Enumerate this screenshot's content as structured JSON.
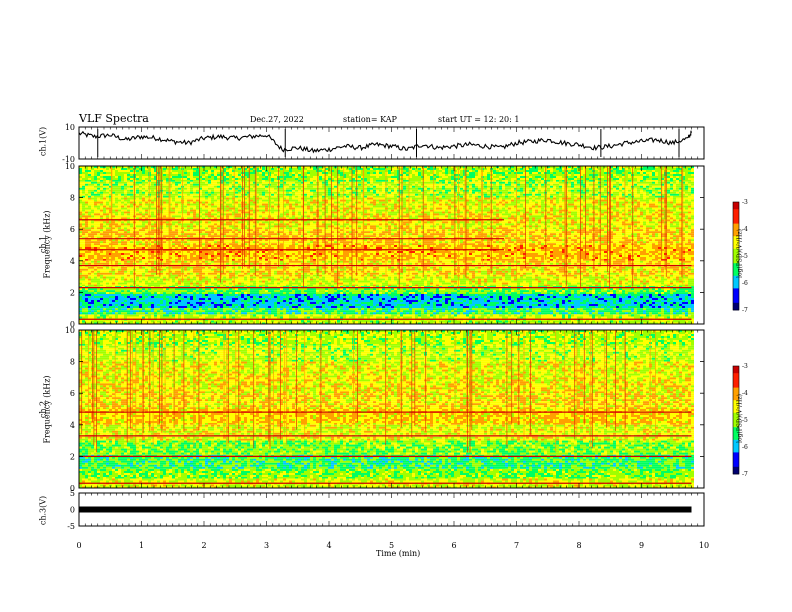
{
  "header": {
    "title": "VLF Spectra",
    "date": "Dec.27, 2022",
    "station": "station= KAP",
    "start": "start  UT  =   12: 20: 1"
  },
  "colorbar": {
    "label": "log(PSD)(V²/Hz)",
    "ticks": [
      "-3",
      "-4",
      "-5",
      "-6",
      "-7"
    ]
  },
  "colors": {
    "colormap": [
      "#000070",
      "#0000ff",
      "#00c8ff",
      "#00ff60",
      "#a0ff00",
      "#ffff00",
      "#ffa000",
      "#ff2000",
      "#c80000",
      "#ffffff"
    ],
    "trace": "#000000"
  },
  "chart_data": [
    {
      "type": "line",
      "name_label": "ch.1(V)",
      "ylabel": "ch.1(V)",
      "ylim": [
        -10,
        10
      ],
      "yticks": [
        "10",
        "-10"
      ],
      "xlim": [
        0,
        10
      ],
      "x": [
        0,
        0.25,
        0.5,
        0.75,
        1.0,
        1.25,
        1.5,
        1.75,
        2.0,
        2.25,
        2.5,
        2.75,
        3.0,
        3.25,
        3.5,
        3.75,
        4.0,
        4.25,
        4.5,
        4.75,
        5.0,
        5.25,
        5.5,
        5.75,
        6.0,
        6.25,
        6.5,
        6.75,
        7.0,
        7.25,
        7.5,
        7.75,
        8.0,
        8.25,
        8.5,
        8.75,
        9.0,
        9.25,
        9.5,
        9.75,
        9.8
      ],
      "values": [
        6,
        4,
        5,
        2,
        4,
        3,
        1,
        0,
        3,
        4,
        3,
        4,
        5,
        -4,
        -3,
        -5,
        -4,
        -2,
        -3,
        -1,
        -2,
        -4,
        -1,
        -3,
        -2,
        -1,
        -2,
        -3,
        0,
        1,
        2,
        0,
        -1,
        -3,
        -2,
        0,
        1,
        2,
        0,
        3,
        7
      ]
    },
    {
      "type": "heatmap",
      "name_label": "ch.1",
      "ylabel": "ch.1\nFrequency (kHz)",
      "ylim": [
        0,
        10
      ],
      "xlim": [
        0,
        10
      ],
      "yticks": [
        "0",
        "2",
        "4",
        "6",
        "8",
        "10"
      ],
      "zlim": [
        -7,
        -3
      ],
      "bands": [
        {
          "f": [
            9.0,
            10.0
          ],
          "level": -5.0
        },
        {
          "f": [
            8.0,
            9.0
          ],
          "level": -4.9
        },
        {
          "f": [
            7.0,
            8.0
          ],
          "level": -4.6
        },
        {
          "f": [
            6.0,
            7.0
          ],
          "level": -4.5
        },
        {
          "f": [
            5.0,
            6.0
          ],
          "level": -4.3
        },
        {
          "f": [
            4.0,
            5.0
          ],
          "level": -4.2
        },
        {
          "f": [
            3.0,
            4.0
          ],
          "level": -4.4
        },
        {
          "f": [
            2.4,
            3.0
          ],
          "level": -4.7
        },
        {
          "f": [
            1.9,
            2.4
          ],
          "level": -5.2
        },
        {
          "f": [
            1.0,
            1.9
          ],
          "level": -5.9
        },
        {
          "f": [
            0.6,
            1.0
          ],
          "level": -5.4
        },
        {
          "f": [
            0.0,
            0.6
          ],
          "level": -4.8
        }
      ],
      "lines": [
        {
          "f": 6.6,
          "t": [
            0,
            6.8
          ]
        },
        {
          "f": 5.4,
          "t": [
            0,
            6.8
          ]
        },
        {
          "f": 4.7,
          "t": [
            0,
            6.8
          ]
        },
        {
          "f": 3.7,
          "t": [
            0,
            9.8
          ]
        },
        {
          "f": 2.3,
          "t": [
            0,
            9.8
          ]
        },
        {
          "f": 0.3,
          "t": [
            0,
            9.8
          ]
        }
      ]
    },
    {
      "type": "heatmap",
      "name_label": "ch.2",
      "ylabel": "ch.2\nFrequency (kHz)",
      "ylim": [
        0,
        10
      ],
      "xlim": [
        0,
        10
      ],
      "yticks": [
        "0",
        "2",
        "4",
        "6",
        "8",
        "10"
      ],
      "zlim": [
        -7,
        -3
      ],
      "bands": [
        {
          "f": [
            9.0,
            10.0
          ],
          "level": -4.9
        },
        {
          "f": [
            8.0,
            9.0
          ],
          "level": -4.8
        },
        {
          "f": [
            7.0,
            8.0
          ],
          "level": -4.6
        },
        {
          "f": [
            6.0,
            7.0
          ],
          "level": -4.5
        },
        {
          "f": [
            5.0,
            6.0
          ],
          "level": -4.4
        },
        {
          "f": [
            4.0,
            5.0
          ],
          "level": -4.3
        },
        {
          "f": [
            3.0,
            4.0
          ],
          "level": -4.6
        },
        {
          "f": [
            2.1,
            3.0
          ],
          "level": -5.1
        },
        {
          "f": [
            1.2,
            2.1
          ],
          "level": -5.4
        },
        {
          "f": [
            0.6,
            1.2
          ],
          "level": -5.1
        },
        {
          "f": [
            0.0,
            0.6
          ],
          "level": -4.7
        }
      ],
      "lines": [
        {
          "f": 4.8,
          "t": [
            0,
            9.8
          ]
        },
        {
          "f": 3.3,
          "t": [
            0,
            9.8
          ]
        },
        {
          "f": 2.0,
          "t": [
            0,
            9.8
          ]
        },
        {
          "f": 0.3,
          "t": [
            0,
            9.8
          ]
        }
      ]
    },
    {
      "type": "line",
      "name_label": "ch.3(V)",
      "ylabel": "ch.3(V)",
      "ylim": [
        -5,
        5
      ],
      "yticks": [
        "5",
        "0",
        "-5"
      ],
      "xlim": [
        0,
        10
      ],
      "x": [
        0,
        9.8
      ],
      "values": [
        0,
        0
      ]
    }
  ],
  "xaxis": {
    "label": "Time (min)",
    "ticks": [
      "0",
      "1",
      "2",
      "3",
      "4",
      "5",
      "6",
      "7",
      "8",
      "9",
      "10"
    ]
  }
}
